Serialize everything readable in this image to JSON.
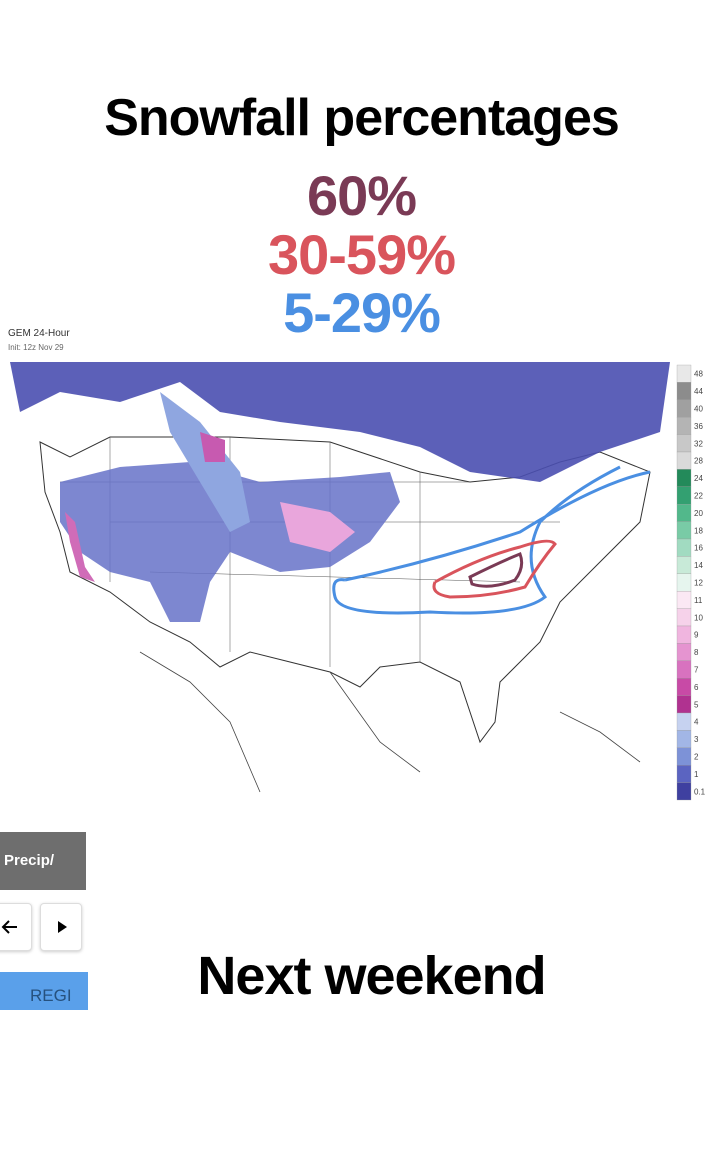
{
  "header": {
    "title": "Snowfall percentages",
    "legend": [
      "60%",
      "30-59%",
      "5-29%"
    ]
  },
  "map": {
    "title": "GEM 24-Hour",
    "init": "Init: 12z Nov 29",
    "colorbar": [
      {
        "label": "48",
        "color": "#e8e8e8"
      },
      {
        "label": "44",
        "color": "#8c8c8c"
      },
      {
        "label": "40",
        "color": "#a0a0a0"
      },
      {
        "label": "36",
        "color": "#b4b4b4"
      },
      {
        "label": "32",
        "color": "#c8c8c8"
      },
      {
        "label": "28",
        "color": "#dadada"
      },
      {
        "label": "24",
        "color": "#238a5a"
      },
      {
        "label": "22",
        "color": "#33a071"
      },
      {
        "label": "20",
        "color": "#52b88b"
      },
      {
        "label": "18",
        "color": "#79cba6"
      },
      {
        "label": "16",
        "color": "#a1dbc1"
      },
      {
        "label": "14",
        "color": "#c8ead8"
      },
      {
        "label": "12",
        "color": "#e6f5ee"
      },
      {
        "label": "11",
        "color": "#fbe8f4"
      },
      {
        "label": "10",
        "color": "#f6d2ea"
      },
      {
        "label": "9",
        "color": "#f0b5df"
      },
      {
        "label": "8",
        "color": "#e594d0"
      },
      {
        "label": "7",
        "color": "#d872bf"
      },
      {
        "label": "6",
        "color": "#c84aa6"
      },
      {
        "label": "5",
        "color": "#b03290"
      },
      {
        "label": "4",
        "color": "#c6d2f0"
      },
      {
        "label": "3",
        "color": "#a2b6e6"
      },
      {
        "label": "2",
        "color": "#7d92d7"
      },
      {
        "label": "1",
        "color": "#5b64c1"
      },
      {
        "label": "0.1",
        "color": "#3f40a0"
      }
    ]
  },
  "controls": {
    "product": "Precip/",
    "region": "REGI"
  },
  "footer": {
    "caption": "Next weekend"
  }
}
